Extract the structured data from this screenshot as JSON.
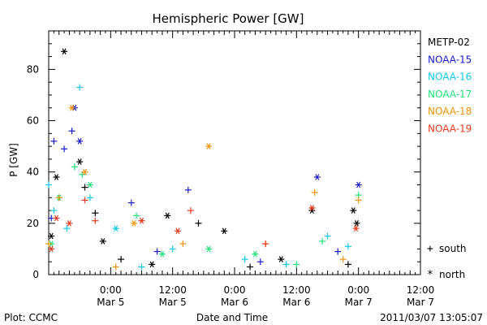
{
  "chart_data": {
    "type": "scatter",
    "title": "Hemispheric Power [GW]",
    "ylabel": "P [GW]",
    "xlabel": "Date and Time",
    "ylim": [
      0,
      95
    ],
    "yticks": [
      0,
      20,
      40,
      60,
      80
    ],
    "xlim": [
      "2011-03-04 12:00",
      "2011-03-07 12:00"
    ],
    "xticks": [
      {
        "at": "2011-03-05 00:00",
        "time": "0:00",
        "date": "Mar 5"
      },
      {
        "at": "2011-03-05 12:00",
        "time": "12:00",
        "date": "Mar 5"
      },
      {
        "at": "2011-03-06 00:00",
        "time": "0:00",
        "date": "Mar 6"
      },
      {
        "at": "2011-03-06 12:00",
        "time": "12:00",
        "date": "Mar 6"
      },
      {
        "at": "2011-03-07 00:00",
        "time": "0:00",
        "date": "Mar 7"
      },
      {
        "at": "2011-03-07 12:00",
        "time": "12:00",
        "date": "Mar 7"
      }
    ],
    "marker_legend": [
      {
        "symbol": "+",
        "label": "south"
      },
      {
        "symbol": "*",
        "label": "north"
      }
    ],
    "series": [
      {
        "name": "METP-02",
        "color": "#000000",
        "points": [
          {
            "t": "2011-03-04 12:30",
            "v": 15,
            "m": "*"
          },
          {
            "t": "2011-03-04 13:30",
            "v": 38,
            "m": "*"
          },
          {
            "t": "2011-03-04 15:00",
            "v": 87,
            "m": "*"
          },
          {
            "t": "2011-03-04 18:00",
            "v": 44,
            "m": "*"
          },
          {
            "t": "2011-03-04 19:00",
            "v": 34,
            "m": "+"
          },
          {
            "t": "2011-03-04 21:00",
            "v": 24,
            "m": "+"
          },
          {
            "t": "2011-03-04 22:30",
            "v": 13,
            "m": "*"
          },
          {
            "t": "2011-03-05 02:00",
            "v": 6,
            "m": "+"
          },
          {
            "t": "2011-03-05 08:00",
            "v": 4,
            "m": "*"
          },
          {
            "t": "2011-03-05 11:00",
            "v": 23,
            "m": "*"
          },
          {
            "t": "2011-03-05 17:00",
            "v": 20,
            "m": "+"
          },
          {
            "t": "2011-03-05 22:00",
            "v": 17,
            "m": "*"
          },
          {
            "t": "2011-03-06 03:00",
            "v": 3,
            "m": "+"
          },
          {
            "t": "2011-03-06 09:00",
            "v": 6,
            "m": "*"
          },
          {
            "t": "2011-03-06 15:00",
            "v": 25,
            "m": "*"
          },
          {
            "t": "2011-03-06 22:00",
            "v": 4,
            "m": "+"
          },
          {
            "t": "2011-03-06 23:00",
            "v": 25,
            "m": "*"
          },
          {
            "t": "2011-03-06 23:40",
            "v": 20,
            "m": "*"
          }
        ]
      },
      {
        "name": "NOAA-15",
        "color": "#1a1acc",
        "points": [
          {
            "t": "2011-03-04 12:30",
            "v": 22,
            "m": "+"
          },
          {
            "t": "2011-03-04 13:00",
            "v": 52,
            "m": "+"
          },
          {
            "t": "2011-03-04 15:00",
            "v": 49,
            "m": "+"
          },
          {
            "t": "2011-03-04 16:30",
            "v": 56,
            "m": "+"
          },
          {
            "t": "2011-03-04 17:00",
            "v": 65,
            "m": "*"
          },
          {
            "t": "2011-03-04 18:00",
            "v": 52,
            "m": "*"
          },
          {
            "t": "2011-03-05 04:00",
            "v": 28,
            "m": "+"
          },
          {
            "t": "2011-03-05 09:00",
            "v": 9,
            "m": "+"
          },
          {
            "t": "2011-03-05 15:00",
            "v": 33,
            "m": "+"
          },
          {
            "t": "2011-03-06 05:00",
            "v": 5,
            "m": "+"
          },
          {
            "t": "2011-03-06 16:00",
            "v": 38,
            "m": "*"
          },
          {
            "t": "2011-03-06 20:00",
            "v": 9,
            "m": "+"
          },
          {
            "t": "2011-03-07 00:00",
            "v": 35,
            "m": "*"
          }
        ]
      },
      {
        "name": "NOAA-16",
        "color": "#12c8e6",
        "points": [
          {
            "t": "2011-03-04 12:00",
            "v": 35,
            "m": "+"
          },
          {
            "t": "2011-03-04 13:00",
            "v": 25,
            "m": "+"
          },
          {
            "t": "2011-03-04 15:30",
            "v": 18,
            "m": "+"
          },
          {
            "t": "2011-03-04 18:00",
            "v": 73,
            "m": "+"
          },
          {
            "t": "2011-03-04 20:00",
            "v": 30,
            "m": "+"
          },
          {
            "t": "2011-03-05 01:00",
            "v": 18,
            "m": "*"
          },
          {
            "t": "2011-03-05 06:00",
            "v": 3,
            "m": "+"
          },
          {
            "t": "2011-03-05 12:00",
            "v": 10,
            "m": "+"
          },
          {
            "t": "2011-03-06 02:00",
            "v": 6,
            "m": "+"
          },
          {
            "t": "2011-03-06 10:00",
            "v": 4,
            "m": "+"
          },
          {
            "t": "2011-03-06 18:00",
            "v": 15,
            "m": "+"
          },
          {
            "t": "2011-03-06 22:00",
            "v": 11,
            "m": "+"
          }
        ]
      },
      {
        "name": "NOAA-17",
        "color": "#22e07a",
        "points": [
          {
            "t": "2011-03-04 12:30",
            "v": 12,
            "m": "*"
          },
          {
            "t": "2011-03-04 14:00",
            "v": 30,
            "m": "*"
          },
          {
            "t": "2011-03-04 17:00",
            "v": 42,
            "m": "+"
          },
          {
            "t": "2011-03-04 18:30",
            "v": 39,
            "m": "+"
          },
          {
            "t": "2011-03-04 20:00",
            "v": 35,
            "m": "*"
          },
          {
            "t": "2011-03-05 05:00",
            "v": 23,
            "m": "+"
          },
          {
            "t": "2011-03-05 10:00",
            "v": 8,
            "m": "*"
          },
          {
            "t": "2011-03-05 19:00",
            "v": 10,
            "m": "*"
          },
          {
            "t": "2011-03-06 04:00",
            "v": 8,
            "m": "*"
          },
          {
            "t": "2011-03-06 12:00",
            "v": 4,
            "m": "+"
          },
          {
            "t": "2011-03-06 17:00",
            "v": 13,
            "m": "+"
          },
          {
            "t": "2011-03-07 00:00",
            "v": 31,
            "m": "+"
          }
        ]
      },
      {
        "name": "NOAA-18",
        "color": "#f0920a",
        "points": [
          {
            "t": "2011-03-04 12:00",
            "v": 12,
            "m": "+"
          },
          {
            "t": "2011-03-04 14:00",
            "v": 30,
            "m": "+"
          },
          {
            "t": "2011-03-04 16:30",
            "v": 65,
            "m": "*"
          },
          {
            "t": "2011-03-04 19:00",
            "v": 40,
            "m": "*"
          },
          {
            "t": "2011-03-05 01:00",
            "v": 3,
            "m": "+"
          },
          {
            "t": "2011-03-05 04:30",
            "v": 20,
            "m": "*"
          },
          {
            "t": "2011-03-05 14:00",
            "v": 12,
            "m": "+"
          },
          {
            "t": "2011-03-05 19:00",
            "v": 50,
            "m": "*"
          },
          {
            "t": "2011-03-06 06:00",
            "v": 12,
            "m": "+"
          },
          {
            "t": "2011-03-06 15:30",
            "v": 32,
            "m": "+"
          },
          {
            "t": "2011-03-06 21:00",
            "v": 6,
            "m": "+"
          },
          {
            "t": "2011-03-07 00:00",
            "v": 29,
            "m": "+"
          }
        ]
      },
      {
        "name": "NOAA-19",
        "color": "#e83a1e",
        "points": [
          {
            "t": "2011-03-04 12:30",
            "v": 10,
            "m": "*"
          },
          {
            "t": "2011-03-04 13:30",
            "v": 22,
            "m": "*"
          },
          {
            "t": "2011-03-04 16:00",
            "v": 20,
            "m": "*"
          },
          {
            "t": "2011-03-04 19:00",
            "v": 29,
            "m": "+"
          },
          {
            "t": "2011-03-04 21:00",
            "v": 21,
            "m": "+"
          },
          {
            "t": "2011-03-05 06:00",
            "v": 21,
            "m": "*"
          },
          {
            "t": "2011-03-05 13:00",
            "v": 17,
            "m": "*"
          },
          {
            "t": "2011-03-05 15:30",
            "v": 25,
            "m": "+"
          },
          {
            "t": "2011-03-06 06:00",
            "v": 12,
            "m": "+"
          },
          {
            "t": "2011-03-06 15:00",
            "v": 26,
            "m": "*"
          },
          {
            "t": "2011-03-06 23:30",
            "v": 18,
            "m": "*"
          }
        ]
      }
    ]
  },
  "footer": {
    "left": "Plot: CCMC",
    "right": "2011/03/07 13:05:07"
  }
}
